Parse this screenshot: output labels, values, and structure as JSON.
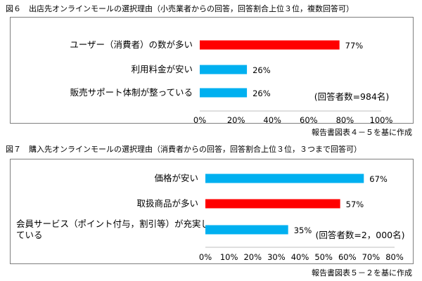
{
  "chart_data": [
    {
      "type": "bar",
      "orientation": "horizontal",
      "title": "図６　出店先オンラインモールの選択理由（小売業者からの回答，回答割合上位３位，複数回答可）",
      "categories": [
        "ユーザー（消費者）の数が多い",
        "利用料金が安い",
        "販売サポート体制が整っている"
      ],
      "values": [
        77,
        26,
        26
      ],
      "value_labels": [
        "77%",
        "26%",
        "26%"
      ],
      "highlight": [
        true,
        false,
        false
      ],
      "xlim": [
        0,
        100
      ],
      "xticks": [
        "0%",
        "20%",
        "40%",
        "60%",
        "80%",
        "100%"
      ],
      "note": "(回答者数=984名)",
      "source": "報告書図表４－５を基に作成",
      "grid": false
    },
    {
      "type": "bar",
      "orientation": "horizontal",
      "title": "図７　購入先オンラインモールの選択理由（消費者からの回答，回答割合上位３位，３つまで回答可）",
      "categories": [
        "価格が安い",
        "取扱商品が多い",
        "会員サービス（ポイント付与，割引等）が充実している"
      ],
      "category_lines": [
        [
          "価格が安い"
        ],
        [
          "取扱商品が多い"
        ],
        [
          "会員サービス（ポイント付与，割引等）が充実し",
          "ている"
        ]
      ],
      "values": [
        67,
        57,
        35
      ],
      "value_labels": [
        "67%",
        "57%",
        "35%"
      ],
      "highlight": [
        false,
        true,
        false
      ],
      "xlim": [
        0,
        80
      ],
      "xticks": [
        "0%",
        "10%",
        "20%",
        "30%",
        "40%",
        "50%",
        "60%",
        "70%",
        "80%"
      ],
      "note": "(回答者数=2，000名)",
      "source": "報告書図表５－２を基に作成",
      "grid": false
    }
  ],
  "colors": {
    "highlight": "#ff0000",
    "normal": "#00b0f0",
    "frame": "#7f7f7f",
    "axis": "#bfbfbf"
  }
}
